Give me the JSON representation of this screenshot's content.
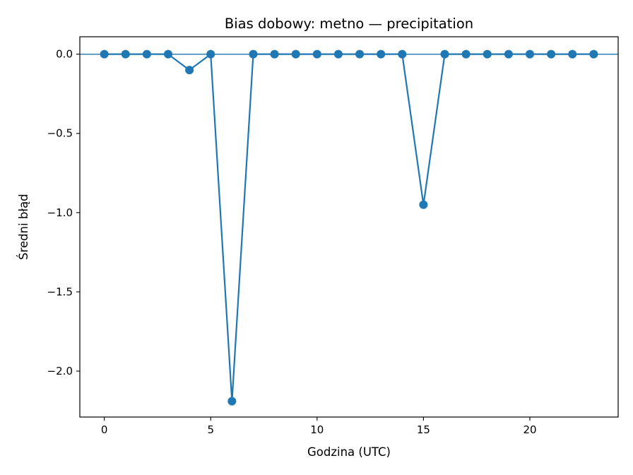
{
  "chart_data": {
    "type": "line",
    "title": "Bias dobowy: metno — precipitation",
    "xlabel": "Godzina (UTC)",
    "ylabel": "Średni błąd",
    "xlim": [
      -1.15,
      24.15
    ],
    "ylim": [
      -2.29,
      0.11
    ],
    "xticks": [
      0,
      5,
      10,
      15,
      20
    ],
    "xtick_labels": [
      "0",
      "5",
      "10",
      "15",
      "20"
    ],
    "yticks": [
      0.0,
      -0.5,
      -1.0,
      -1.5,
      -2.0
    ],
    "ytick_labels": [
      "0.0",
      "−0.5",
      "−1.0",
      "−1.5",
      "−2.0"
    ],
    "reference_line_y": 0,
    "grid": false,
    "series": [
      {
        "color": "#1f77b4",
        "marker": "circle",
        "x": [
          0,
          1,
          2,
          3,
          4,
          5,
          6,
          7,
          8,
          9,
          10,
          11,
          12,
          13,
          14,
          15,
          16,
          17,
          18,
          19,
          20,
          21,
          22,
          23
        ],
        "values": [
          0,
          0,
          0,
          0,
          -0.1,
          0,
          -2.19,
          0,
          0,
          0,
          0,
          0,
          0,
          0,
          0,
          -0.95,
          0,
          0,
          0,
          0,
          0,
          0,
          0,
          0
        ]
      }
    ]
  }
}
